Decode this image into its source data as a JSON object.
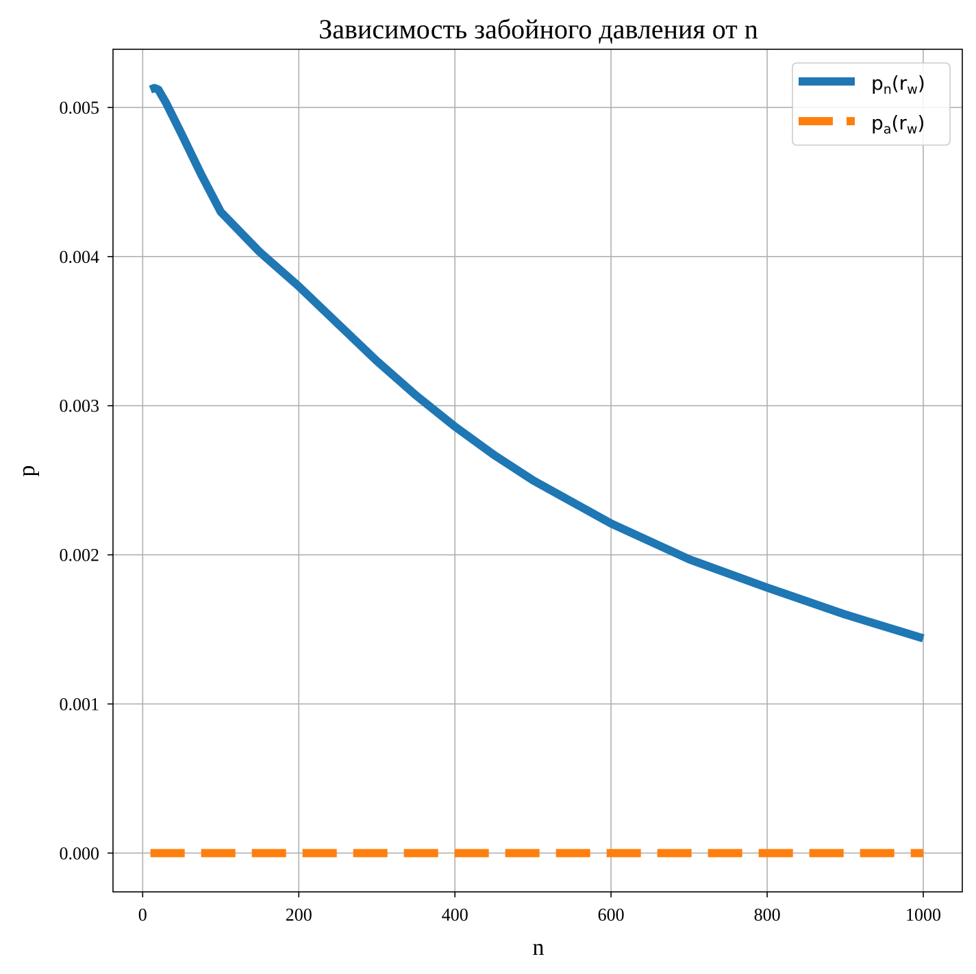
{
  "chart_data": {
    "type": "line",
    "title": "Зависимость забойного давления от n",
    "xlabel": "n",
    "ylabel": "p",
    "xlim": [
      -38,
      1050
    ],
    "ylim": [
      -0.00026,
      0.00539
    ],
    "xticks": [
      0,
      200,
      400,
      600,
      800,
      1000
    ],
    "xtick_labels": [
      "0",
      "200",
      "400",
      "600",
      "800",
      "1000"
    ],
    "yticks": [
      0.0,
      0.001,
      0.002,
      0.003,
      0.004,
      0.005
    ],
    "ytick_labels": [
      "0.000",
      "0.001",
      "0.002",
      "0.003",
      "0.004",
      "0.005"
    ],
    "grid": true,
    "legend": "top-right",
    "series": [
      {
        "name_base": "p",
        "name_sub": "n",
        "name_paren": "r",
        "name_paren_sub": "w",
        "color": "#1f77b4",
        "style": "solid",
        "x": [
          10,
          15,
          20,
          30,
          50,
          75,
          100,
          150,
          200,
          250,
          300,
          350,
          400,
          450,
          500,
          600,
          700,
          800,
          900,
          1000
        ],
        "y": [
          0.00512,
          0.00513,
          0.00512,
          0.00503,
          0.00482,
          0.00455,
          0.0043,
          0.00403,
          0.0038,
          0.00355,
          0.0033,
          0.00307,
          0.00286,
          0.00267,
          0.0025,
          0.00221,
          0.00197,
          0.00178,
          0.0016,
          0.00144
        ]
      },
      {
        "name_base": "p",
        "name_sub": "a",
        "name_paren": "r",
        "name_paren_sub": "w",
        "color": "#ff7f0e",
        "style": "dashed",
        "x": [
          10,
          1000
        ],
        "y": [
          0.0,
          0.0
        ]
      }
    ]
  }
}
